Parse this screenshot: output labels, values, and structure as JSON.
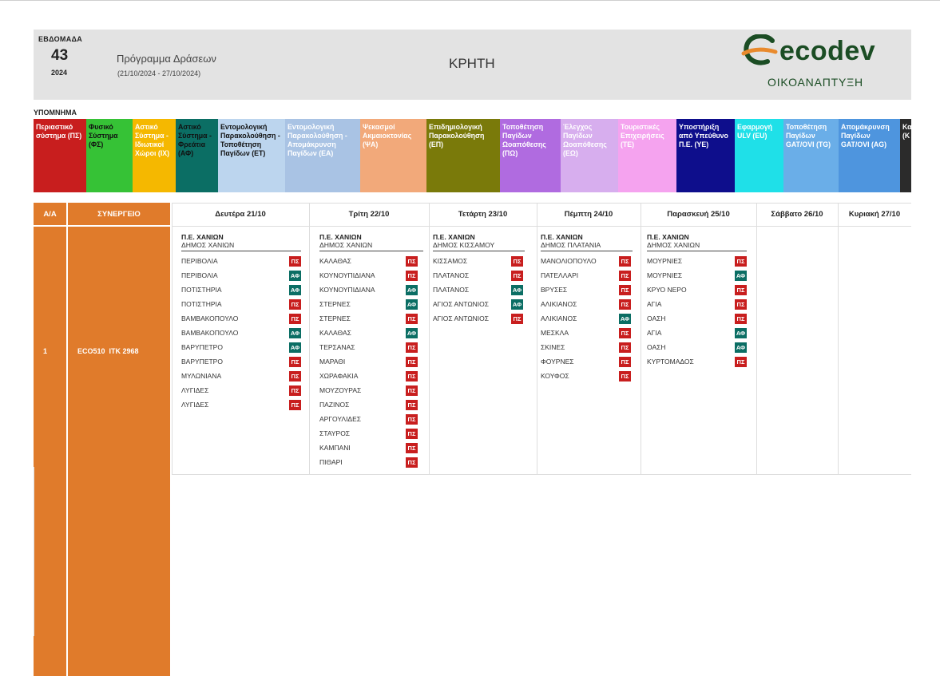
{
  "header": {
    "week_label": "ΕΒΔΟΜΑΔΑ",
    "week_number": "43",
    "year": "2024",
    "program_title": "Πρόγραμμα Δράσεων",
    "program_dates": "(21/10/2024 - 27/10/2024)",
    "region": "ΚΡΗΤΗ",
    "logo_word": "ecodev",
    "logo_sub": "ΟΙΚΟΑΝΑΠΤΥΞΗ"
  },
  "legend": {
    "title": "ΥΠΟΜΝΗΜΑ",
    "items": [
      {
        "label": "Περιαστικό σύστημα (ΠΣ)",
        "bg": "#c81e1e",
        "fg": "#ffffff"
      },
      {
        "label": "Φυσικό Σύστημα (ΦΣ)",
        "bg": "#36c236",
        "fg": "#111111"
      },
      {
        "label": "Αστικό Σύστημα - Ιδιωτικοί Χώροι (ΙΧ)",
        "bg": "#f5b800",
        "fg": "#ffffff"
      },
      {
        "label": "Αστικό Σύστημα - Φρεάτια (ΑΦ)",
        "bg": "#0b6e64",
        "fg": "#111111"
      },
      {
        "label": "Εντομολογική Παρακολούθηση - Τοποθέτηση Παγίδων (ΕΤ)",
        "bg": "#bcd5ee",
        "fg": "#111111"
      },
      {
        "label": "Εντομολογική Παρακολούθηση - Απομάκρυνση Παγίδων (ΕΑ)",
        "bg": "#a9c3e4",
        "fg": "#ffffff"
      },
      {
        "label": "Ψεκασμοί Ακμαιοκτονίας (ΨΑ)",
        "bg": "#f2a97a",
        "fg": "#ffffff"
      },
      {
        "label": "Επιδημιολογική Παρακολούθηση (ΕΠ)",
        "bg": "#7a7a0a",
        "fg": "#ffffff"
      },
      {
        "label": "Τοποθέτηση Παγίδων Ωοαπόθεσης (ΠΩ)",
        "bg": "#b06be0",
        "fg": "#ffffff"
      },
      {
        "label": "Έλεγχος Παγίδων Ωοαπόθεσης (ΕΩ)",
        "bg": "#d7aeee",
        "fg": "#ffffff"
      },
      {
        "label": "Τουριστικές Επιχειρήσεις (ΤΕ)",
        "bg": "#f5a3ef",
        "fg": "#ffffff"
      },
      {
        "label": "Υποστήριξη από Υπεύθυνο Π.Ε. (ΥΕ)",
        "bg": "#0e0e8c",
        "fg": "#ffffff"
      },
      {
        "label": "Εφαρμογή ULV (EU)",
        "bg": "#1fe0e8",
        "fg": "#ffffff"
      },
      {
        "label": "Τοποθέτηση Παγίδων GAT/OVI (TG)",
        "bg": "#6aaee8",
        "fg": "#ffffff"
      },
      {
        "label": "Απομάκρυνση Παγίδων GAT/OVI (AG)",
        "bg": "#4e95de",
        "fg": "#ffffff"
      },
      {
        "label": "Κα ελ (Κ",
        "bg": "#2b2b2b",
        "fg": "#ffffff"
      }
    ]
  },
  "table": {
    "col_aa": "Α/Α",
    "col_synergeio": "ΣΥΝΕΡΓΕΙΟ",
    "days": [
      "Δευτέρα 21/10",
      "Τρίτη 22/10",
      "Τετάρτη 23/10",
      "Πέμπτη 24/10",
      "Παρασκευή 25/10",
      "Σάββατο 26/10",
      "Κυριακή 27/10"
    ],
    "row_number": "1",
    "team": "ECO510  ΙΤΚ 2968",
    "schedule": [
      {
        "pe": "Π.Ε. ΧΑΝΙΩΝ",
        "dimos": "ΔΗΜΟΣ ΧΑΝΙΩΝ",
        "entries": [
          {
            "name": "ΠΕΡΙΒΟΛΙΑ",
            "tag": "ΠΣ"
          },
          {
            "name": "ΠΕΡΙΒΟΛΙΑ",
            "tag": "ΑΦ"
          },
          {
            "name": "ΠΟΤΙΣΤΗΡΙΑ",
            "tag": "ΑΦ"
          },
          {
            "name": "ΠΟΤΙΣΤΗΡΙΑ",
            "tag": "ΠΣ"
          },
          {
            "name": "ΒΑΜΒΑΚΟΠΟΥΛΟ",
            "tag": "ΠΣ"
          },
          {
            "name": "ΒΑΜΒΑΚΟΠΟΥΛΟ",
            "tag": "ΑΦ"
          },
          {
            "name": "ΒΑΡΥΠΕΤΡΟ",
            "tag": "ΑΦ"
          },
          {
            "name": "ΒΑΡΥΠΕΤΡΟ",
            "tag": "ΠΣ"
          },
          {
            "name": "ΜΥΛΩΝΙΑΝΑ",
            "tag": "ΠΣ"
          },
          {
            "name": "ΛΥΓΙΔΕΣ",
            "tag": "ΠΣ"
          },
          {
            "name": "ΛΥΓΙΔΕΣ",
            "tag": "ΠΣ"
          }
        ]
      },
      {
        "pe": "Π.Ε. ΧΑΝΙΩΝ",
        "dimos": "ΔΗΜΟΣ ΧΑΝΙΩΝ",
        "entries": [
          {
            "name": "ΚΑΛΑΘΑΣ",
            "tag": "ΠΣ"
          },
          {
            "name": "ΚΟΥΝΟΥΠΙΔΙΑΝΑ",
            "tag": "ΠΣ"
          },
          {
            "name": "ΚΟΥΝΟΥΠΙΔΙΑΝΑ",
            "tag": "ΑΦ"
          },
          {
            "name": "ΣΤΕΡΝΕΣ",
            "tag": "ΑΦ"
          },
          {
            "name": "ΣΤΕΡΝΕΣ",
            "tag": "ΠΣ"
          },
          {
            "name": "ΚΑΛΑΘΑΣ",
            "tag": "ΑΦ"
          },
          {
            "name": "ΤΕΡΣΑΝΑΣ",
            "tag": "ΠΣ"
          },
          {
            "name": "ΜΑΡΑΘΙ",
            "tag": "ΠΣ"
          },
          {
            "name": "ΧΩΡΑΦΑΚΙΑ",
            "tag": "ΠΣ"
          },
          {
            "name": "ΜΟΥΖΟΥΡΑΣ",
            "tag": "ΠΣ"
          },
          {
            "name": "ΠΑΖΙΝΟΣ",
            "tag": "ΠΣ"
          },
          {
            "name": "ΑΡΓΟΥΛΙΔΕΣ",
            "tag": "ΠΣ"
          },
          {
            "name": "ΣΤΑΥΡΟΣ",
            "tag": "ΠΣ"
          },
          {
            "name": "ΚΑΜΠΑΝΙ",
            "tag": "ΠΣ"
          },
          {
            "name": "ΠΙΘΑΡΙ",
            "tag": "ΠΣ"
          }
        ]
      },
      {
        "pe": "Π.Ε. ΧΑΝΙΩΝ",
        "dimos": "ΔΗΜΟΣ ΚΙΣΣΑΜΟΥ",
        "entries": [
          {
            "name": "ΚΙΣΣΑΜΟΣ",
            "tag": "ΠΣ"
          },
          {
            "name": "ΠΛΑΤΑΝΟΣ",
            "tag": "ΠΣ"
          },
          {
            "name": "ΠΛΑΤΑΝΟΣ",
            "tag": "ΑΦ"
          },
          {
            "name": "ΑΓΙΟΣ ΑΝΤΩΝΙΟΣ",
            "tag": "ΑΦ"
          },
          {
            "name": "ΑΓΙΟΣ ΑΝΤΩΝΙΟΣ",
            "tag": "ΠΣ"
          }
        ]
      },
      {
        "pe": "Π.Ε. ΧΑΝΙΩΝ",
        "dimos": "ΔΗΜΟΣ ΠΛΑΤΑΝΙΑ",
        "entries": [
          {
            "name": "ΜΑΝΟΛΙΟΠΟΥΛΟ",
            "tag": "ΠΣ"
          },
          {
            "name": "ΠΑΤΕΛΛΑΡΙ",
            "tag": "ΠΣ"
          },
          {
            "name": "ΒΡΥΣΕΣ",
            "tag": "ΠΣ"
          },
          {
            "name": "ΑΛΙΚΙΑΝΟΣ",
            "tag": "ΠΣ"
          },
          {
            "name": "ΑΛΙΚΙΑΝΟΣ",
            "tag": "ΑΦ"
          },
          {
            "name": "ΜΕΣΚΛΑ",
            "tag": "ΠΣ"
          },
          {
            "name": "ΣΚΙΝΕΣ",
            "tag": "ΠΣ"
          },
          {
            "name": "ΦΟΥΡΝΕΣ",
            "tag": "ΠΣ"
          },
          {
            "name": "ΚΟΥΦΟΣ",
            "tag": "ΠΣ"
          }
        ]
      },
      {
        "pe": "Π.Ε. ΧΑΝΙΩΝ",
        "dimos": "ΔΗΜΟΣ ΧΑΝΙΩΝ",
        "entries": [
          {
            "name": "ΜΟΥΡΝΙΕΣ",
            "tag": "ΠΣ"
          },
          {
            "name": "ΜΟΥΡΝΙΕΣ",
            "tag": "ΑΦ"
          },
          {
            "name": "ΚΡΥΟ ΝΕΡΟ",
            "tag": "ΠΣ"
          },
          {
            "name": "ΑΓΙΑ",
            "tag": "ΠΣ"
          },
          {
            "name": "ΟΑΣΗ",
            "tag": "ΠΣ"
          },
          {
            "name": "ΑΓΙΑ",
            "tag": "ΑΦ"
          },
          {
            "name": "ΟΑΣΗ",
            "tag": "ΑΦ"
          },
          {
            "name": "ΚΥΡΤΟΜΑΔΟΣ",
            "tag": "ΠΣ"
          }
        ]
      }
    ]
  }
}
